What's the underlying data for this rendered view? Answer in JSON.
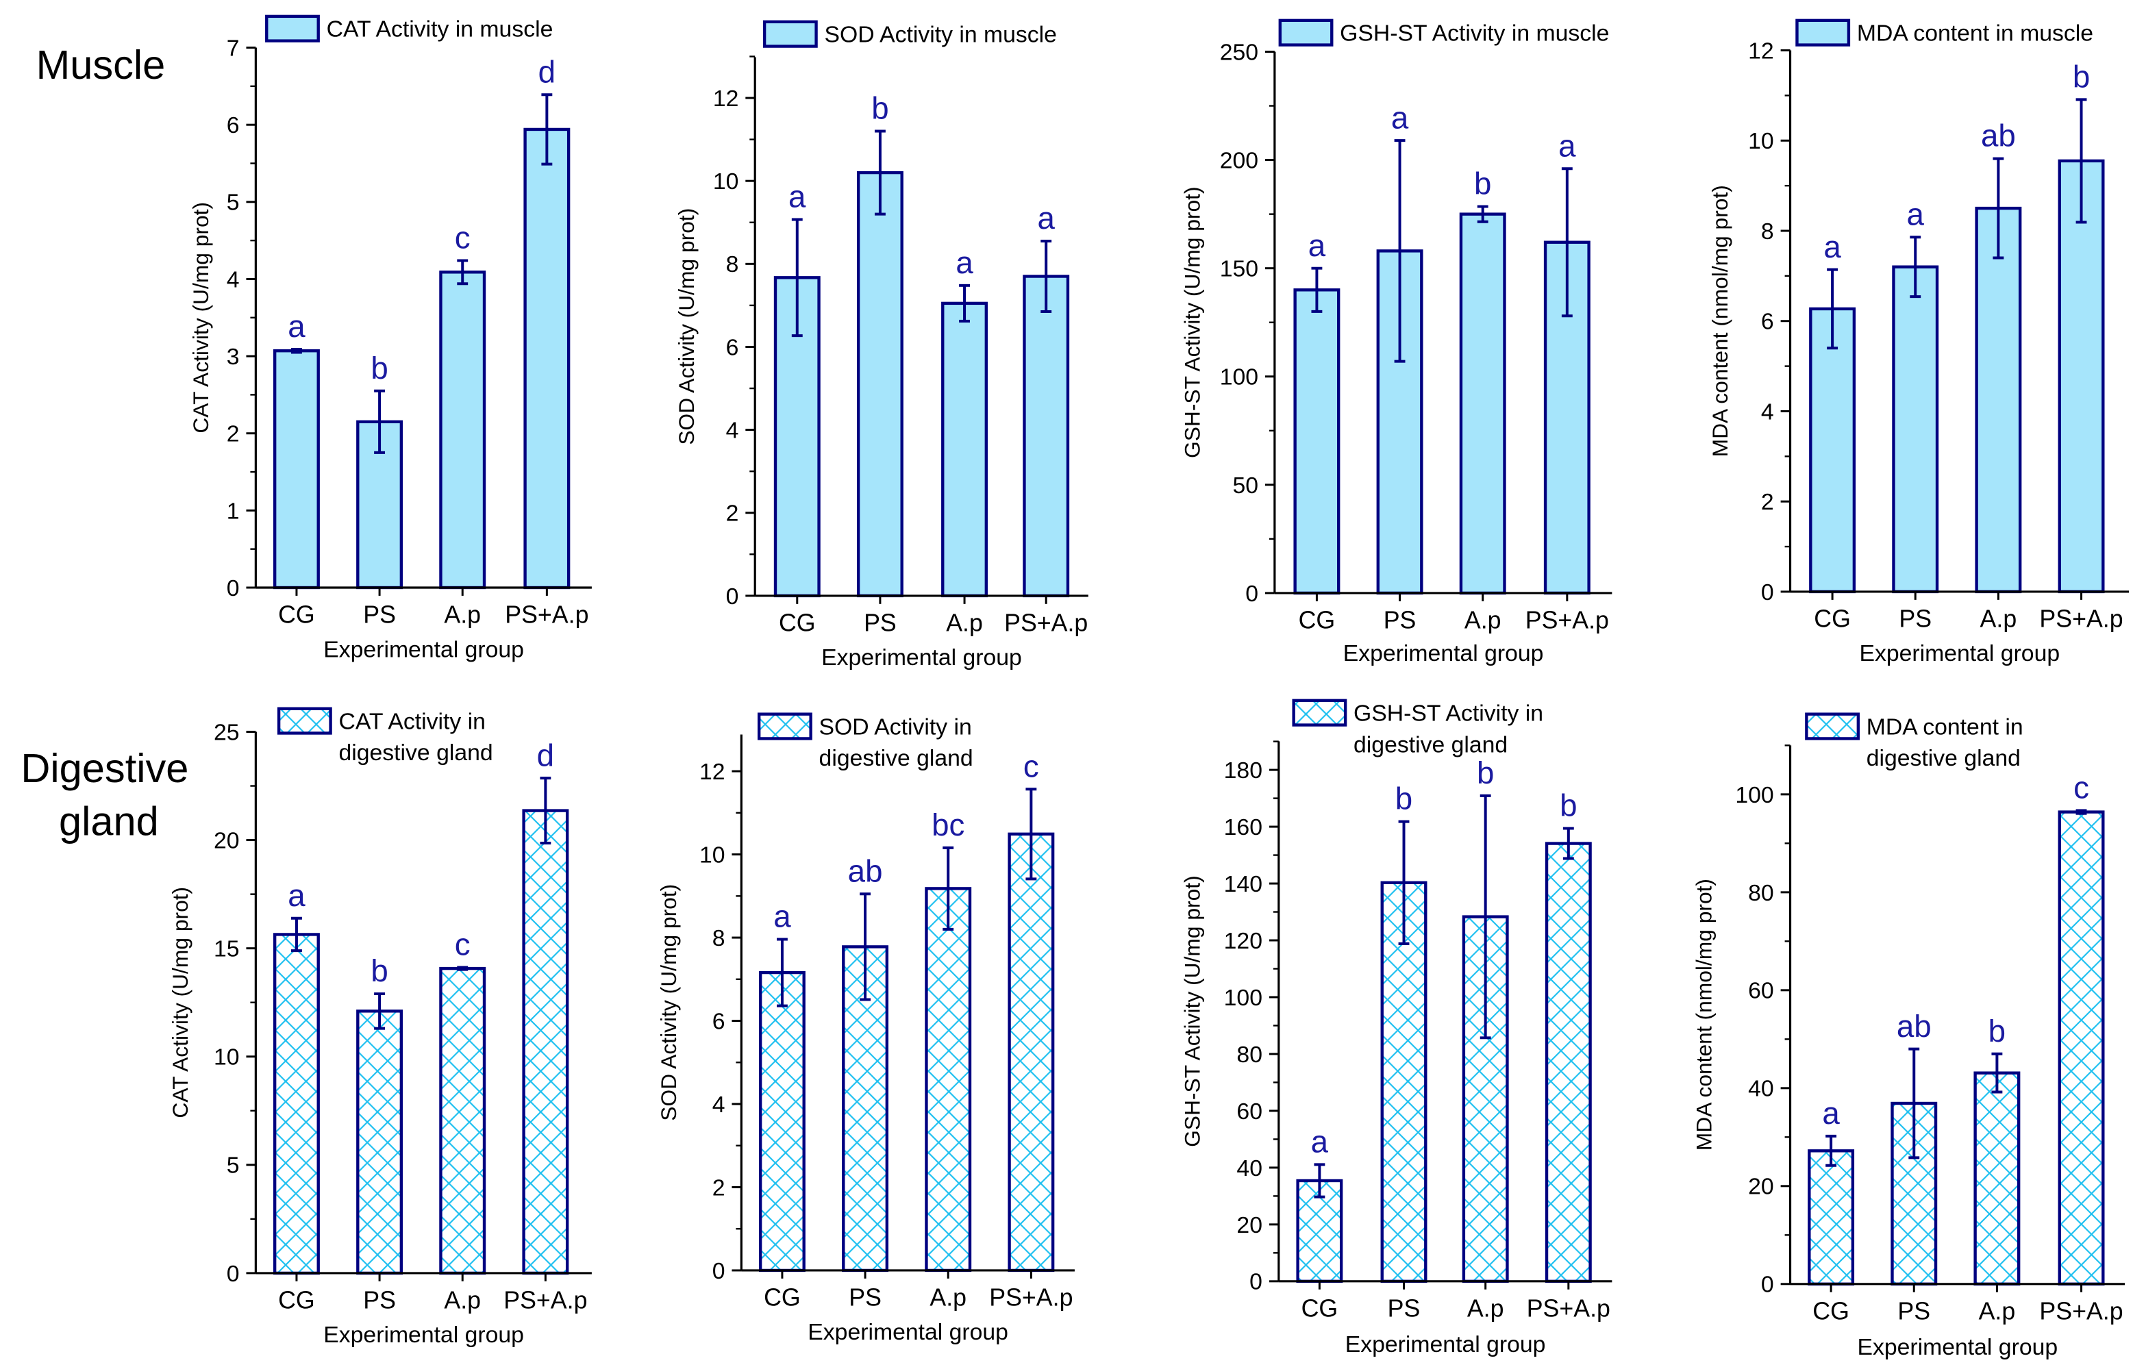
{
  "row_labels": {
    "muscle": [
      "Muscle"
    ],
    "digestive": [
      "Digestive",
      "gland"
    ]
  },
  "colors": {
    "fill": "#a6e5fb",
    "stroke": "#000080",
    "hatch": "#1ec0f0",
    "letters": "#1a1aa0",
    "text": "#000000"
  },
  "chart_data": [
    {
      "type": "bar",
      "title": "CAT Activity in muscle",
      "legend": [
        "CAT Activity in muscle"
      ],
      "pattern": "solid",
      "xlabel": "Experimental group",
      "ylabel": "CAT Activity (U/mg prot)",
      "categories": [
        "CG",
        "PS",
        "A.p",
        "PS+A.p"
      ],
      "values": [
        3.07,
        2.15,
        4.09,
        5.94
      ],
      "errors": [
        0.02,
        0.4,
        0.15,
        0.45
      ],
      "letters": [
        "a",
        "b",
        "c",
        "d"
      ],
      "ylim": [
        0,
        7
      ],
      "yticks": [
        0,
        1,
        2,
        3,
        4,
        5,
        6,
        7
      ]
    },
    {
      "type": "bar",
      "title": "SOD Activity in muscle",
      "legend": [
        "SOD Activity in muscle"
      ],
      "pattern": "solid",
      "xlabel": "Experimental group",
      "ylabel": "SOD Activity (U/mg prot)",
      "categories": [
        "CG",
        "PS",
        "A.p",
        "PS+A.p"
      ],
      "values": [
        7.67,
        10.2,
        7.05,
        7.7
      ],
      "errors": [
        1.4,
        1.0,
        0.43,
        0.85
      ],
      "letters": [
        "a",
        "b",
        "a",
        "a"
      ],
      "ylim": [
        0,
        13
      ],
      "yticks": [
        0,
        2,
        4,
        6,
        8,
        10,
        12
      ]
    },
    {
      "type": "bar",
      "title": "GSH-ST Activity in muscle",
      "legend": [
        "GSH-ST Activity in muscle"
      ],
      "pattern": "solid",
      "xlabel": "Experimental group",
      "ylabel": "GSH-ST Activity (U/mg prot)",
      "categories": [
        "CG",
        "PS",
        "A.p",
        "PS+A.p"
      ],
      "values": [
        140,
        158,
        175,
        162
      ],
      "errors": [
        10,
        51,
        3.5,
        34
      ],
      "letters": [
        "a",
        "a",
        "b",
        "a"
      ],
      "ylim": [
        0,
        250
      ],
      "yticks": [
        0,
        50,
        100,
        150,
        200,
        250
      ]
    },
    {
      "type": "bar",
      "title": "MDA content in muscle",
      "legend": [
        "MDA content in muscle"
      ],
      "pattern": "solid",
      "xlabel": "Experimental group",
      "ylabel": "MDA content (nmol/mg prot)",
      "categories": [
        "CG",
        "PS",
        "A.p",
        "PS+A.p"
      ],
      "values": [
        6.27,
        7.2,
        8.5,
        9.55
      ],
      "errors": [
        0.87,
        0.66,
        1.1,
        1.36
      ],
      "letters": [
        "a",
        "a",
        "ab",
        "b"
      ],
      "ylim": [
        0,
        12
      ],
      "yticks": [
        0,
        2,
        4,
        6,
        8,
        10,
        12
      ]
    },
    {
      "type": "bar",
      "title": "CAT Activity in digestive gland",
      "legend": [
        "CAT Activity in",
        "digestive gland"
      ],
      "pattern": "crosshatch",
      "xlabel": "Experimental group",
      "ylabel": "CAT Activity (U/mg prot)",
      "categories": [
        "CG",
        "PS",
        "A.p",
        "PS+A.p"
      ],
      "values": [
        15.64,
        12.1,
        14.07,
        21.36
      ],
      "errors": [
        0.75,
        0.8,
        0.05,
        1.5
      ],
      "letters": [
        "a",
        "b",
        "c",
        "d"
      ],
      "ylim": [
        0,
        25
      ],
      "yticks": [
        0,
        5,
        10,
        15,
        20,
        25
      ]
    },
    {
      "type": "bar",
      "title": "SOD Activity in digestive gland",
      "legend": [
        "SOD Activity in",
        "digestive gland"
      ],
      "pattern": "crosshatch",
      "xlabel": "Experimental group",
      "ylabel": "SOD Activity (U/mg prot)",
      "categories": [
        "CG",
        "PS",
        "A.p",
        "PS+A.p"
      ],
      "values": [
        7.16,
        7.78,
        9.18,
        10.49
      ],
      "errors": [
        0.8,
        1.27,
        0.98,
        1.08
      ],
      "letters": [
        "a",
        "ab",
        "bc",
        "c"
      ],
      "ylim": [
        0,
        13
      ],
      "yticks": [
        0,
        2,
        4,
        6,
        8,
        10,
        12
      ]
    },
    {
      "type": "bar",
      "title": "GSH-ST Activity in digestive gland",
      "legend": [
        "GSH-ST Activity in",
        "digestive gland"
      ],
      "pattern": "crosshatch",
      "xlabel": "Experimental group",
      "ylabel": "GSH-ST Activity (U/mg prot)",
      "categories": [
        "CG",
        "PS",
        "A.p",
        "PS+A.p"
      ],
      "values": [
        35.4,
        140.3,
        128.3,
        154.1
      ],
      "errors": [
        5.7,
        21.5,
        42.6,
        5.3
      ],
      "letters": [
        "a",
        "b",
        "b",
        "b"
      ],
      "ylim": [
        0,
        190
      ],
      "yticks": [
        0,
        20,
        40,
        60,
        80,
        100,
        120,
        140,
        160,
        180
      ]
    },
    {
      "type": "bar",
      "title": "MDA content in digestive gland",
      "legend": [
        "MDA content in",
        "digestive gland"
      ],
      "pattern": "crosshatch",
      "xlabel": "Experimental group",
      "ylabel": "MDA content (nmol/mg prot)",
      "categories": [
        "CG",
        "PS",
        "A.p",
        "PS+A.p"
      ],
      "values": [
        27.2,
        36.9,
        43.1,
        96.4
      ],
      "errors": [
        3,
        11.1,
        3.9,
        0.3
      ],
      "letters": [
        "a",
        "ab",
        "b",
        "c"
      ],
      "ylim": [
        0,
        110
      ],
      "yticks": [
        0,
        20,
        40,
        60,
        80,
        100
      ]
    }
  ]
}
